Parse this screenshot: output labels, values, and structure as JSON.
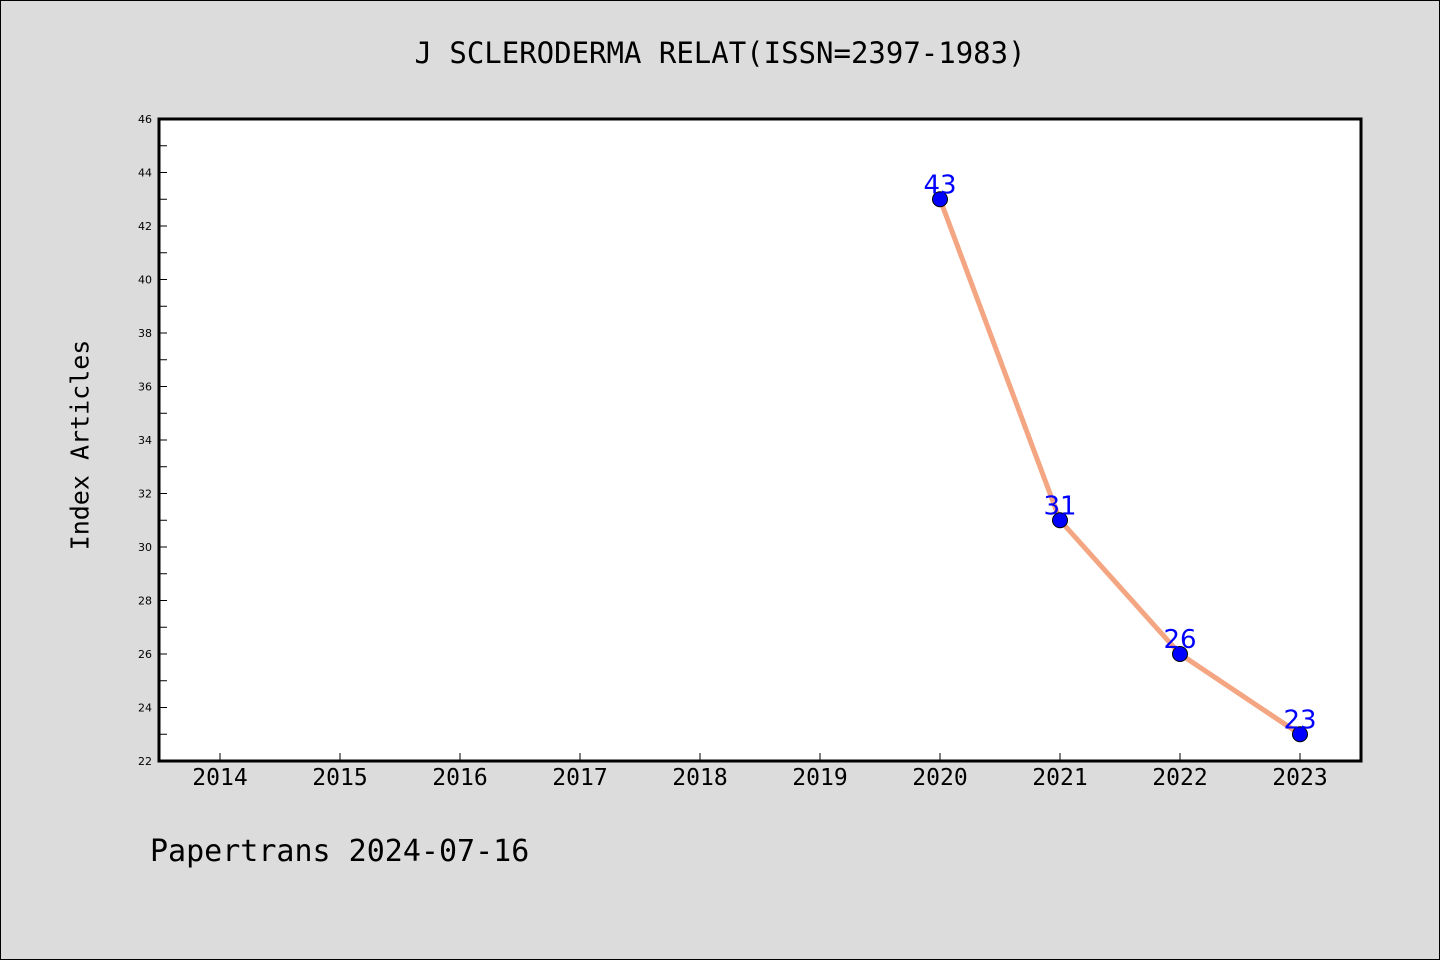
{
  "chart_data": {
    "type": "line",
    "title": "J SCLERODERMA RELAT(ISSN=2397-1983)",
    "xlabel": "",
    "ylabel": "Index Articles",
    "categories": [
      "2014",
      "2015",
      "2016",
      "2017",
      "2018",
      "2019",
      "2020",
      "2021",
      "2022",
      "2023"
    ],
    "series": [
      {
        "points": [
          {
            "x": "2020",
            "y": 43
          },
          {
            "x": "2021",
            "y": 31
          },
          {
            "x": "2022",
            "y": 26
          },
          {
            "x": "2023",
            "y": 23
          }
        ]
      }
    ],
    "ylim": [
      22,
      46
    ],
    "yticks": [
      "22",
      "24",
      "26",
      "28",
      "30",
      "32",
      "34",
      "36",
      "38",
      "40",
      "42",
      "44",
      "46"
    ],
    "grid": false,
    "line_color": "#f4a582",
    "marker_color": "#0000ff",
    "label_color": "#0000ff"
  },
  "footer": {
    "credit": "Papertrans 2024-07-16"
  }
}
